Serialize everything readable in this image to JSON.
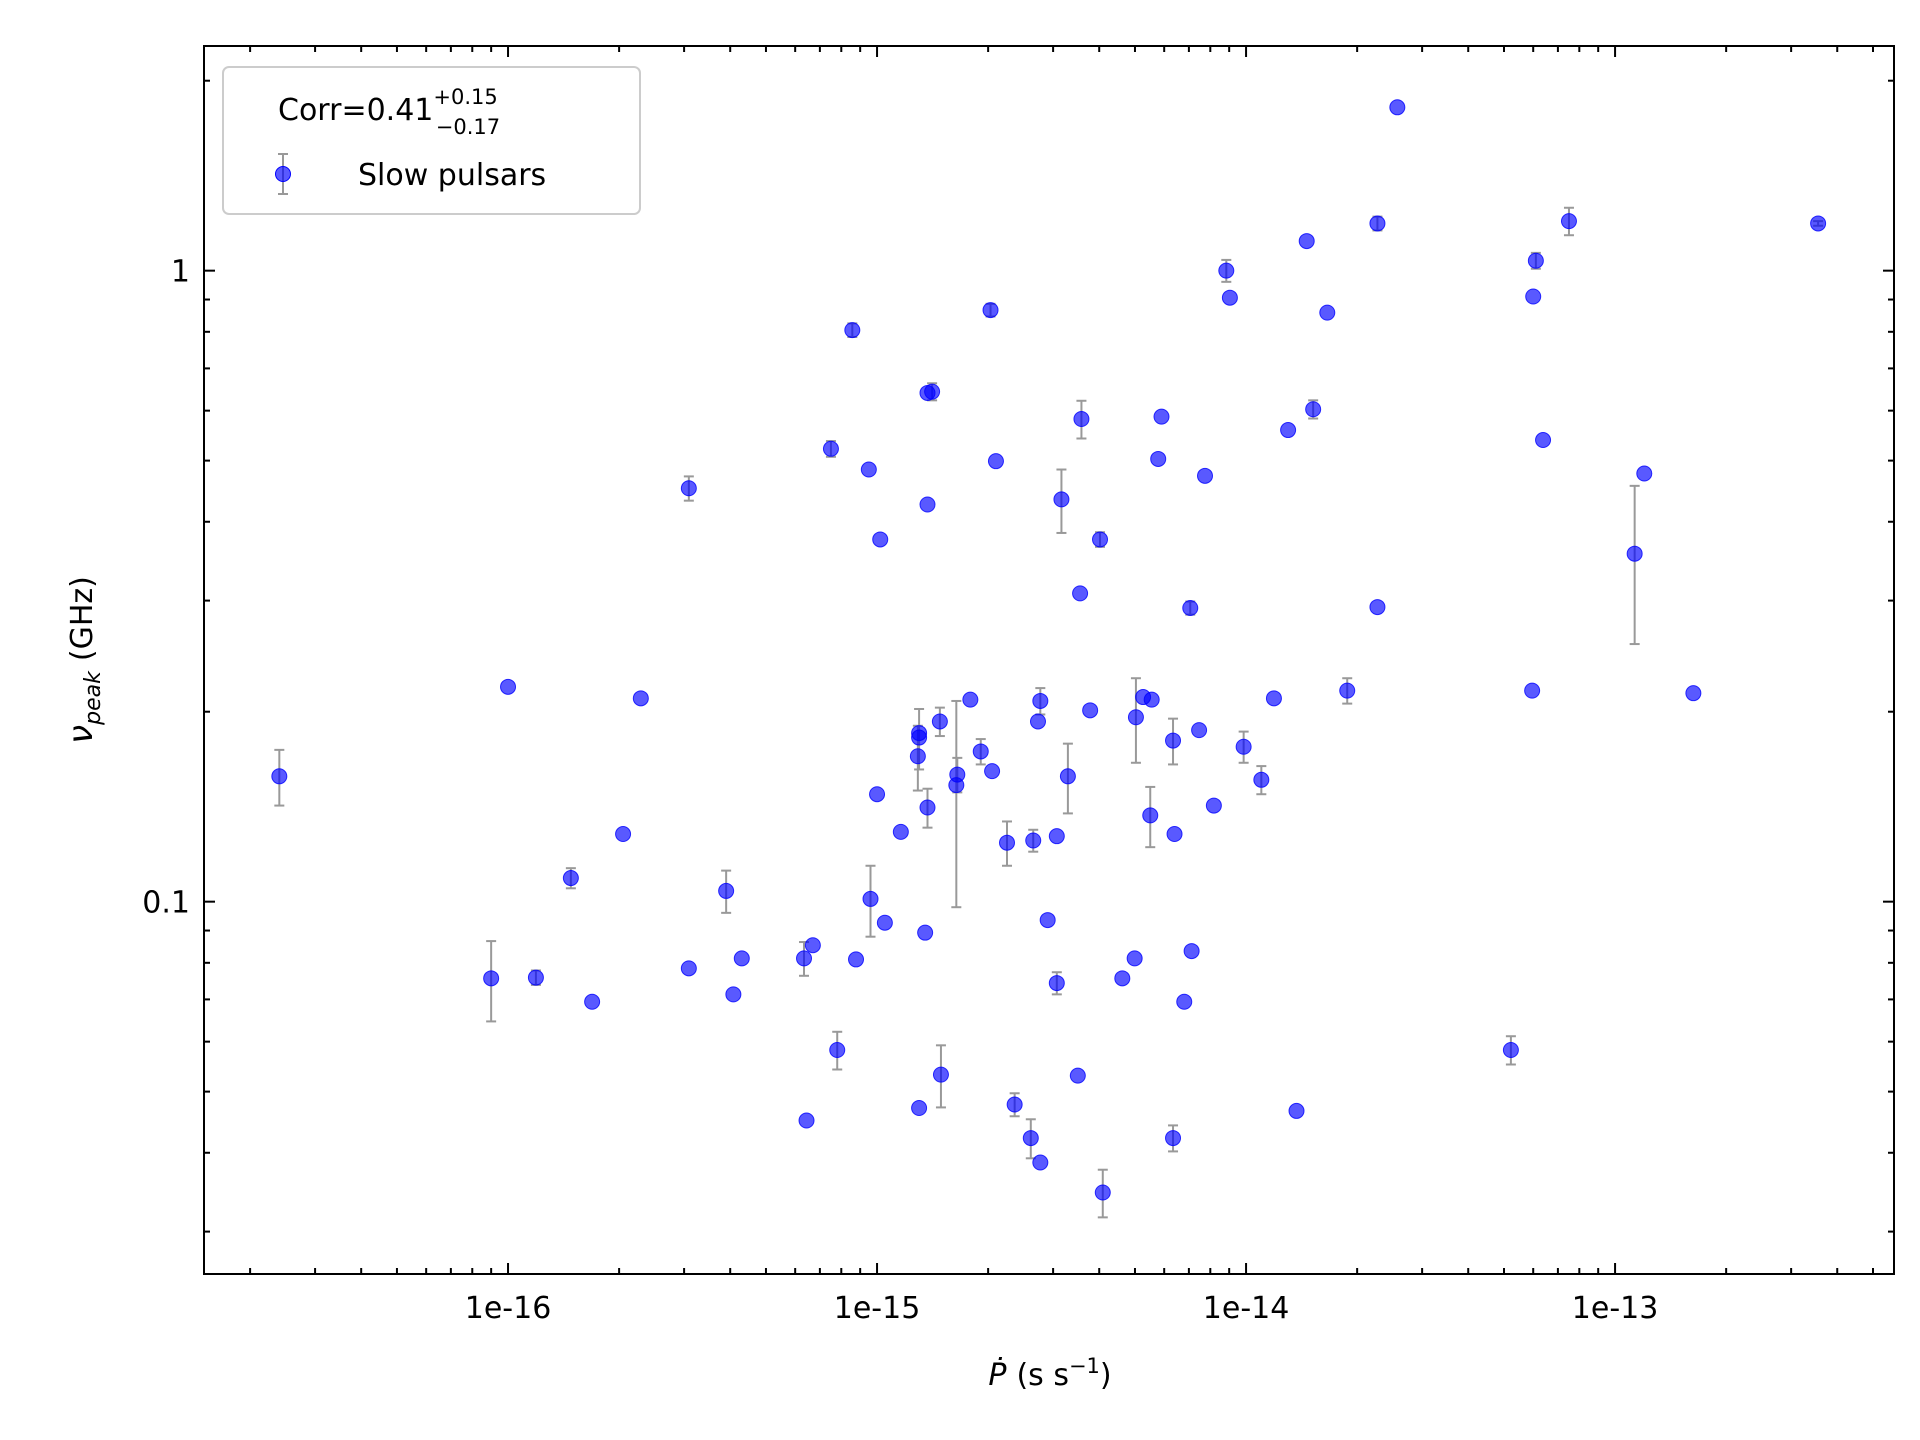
{
  "chart_data": {
    "type": "scatter",
    "log_x": true,
    "log_y": true,
    "legend_title": {
      "text": "Corr=0.41",
      "sup": "+0.15",
      "sub": "−0.17"
    },
    "xlabel": {
      "symbol": "Ṗ",
      "unit": "(s s",
      "sup": "−1",
      "close": ")"
    },
    "ylabel": {
      "symbol": "ν",
      "sub": "peak",
      "unit": "(GHz)"
    },
    "xlim": [
      1.5e-17,
      5.7e-13
    ],
    "ylim": [
      0.0257,
      2.27
    ],
    "xticks": [
      {
        "value": 1e-16,
        "label": "1e-16"
      },
      {
        "value": 1e-15,
        "label": "1e-15"
      },
      {
        "value": 1e-14,
        "label": "1e-14"
      },
      {
        "value": 1e-13,
        "label": "1e-13"
      }
    ],
    "yticks": [
      0.1,
      1
    ],
    "legend": "upper left",
    "x": [
      2.4e-17,
      9e-17,
      1e-16,
      1.19e-16,
      1.69e-16,
      1.48e-16,
      2.05e-16,
      2.29e-16,
      3.09e-16,
      3.09e-16,
      3.9e-16,
      4.08e-16,
      4.3e-16,
      6.34e-16,
      6.7e-16,
      6.44e-16,
      7.8e-16,
      7.5e-16,
      8.57e-16,
      8.77e-16,
      9.6e-16,
      9.5e-16,
      1e-15,
      1.02e-15,
      1.05e-15,
      1.16e-15,
      1.29e-15,
      1.3e-15,
      1.3e-15,
      1.3e-15,
      1.35e-15,
      1.37e-15,
      1.37e-15,
      1.41e-15,
      1.37e-15,
      1.48e-15,
      1.49e-15,
      1.65e-15,
      1.64e-15,
      1.79e-15,
      1.91e-15,
      2.05e-15,
      2.03e-15,
      2.1e-15,
      2.25e-15,
      2.36e-15,
      2.65e-15,
      2.61e-15,
      2.77e-15,
      2.73e-15,
      2.77e-15,
      2.9e-15,
      3.07e-15,
      3.07e-15,
      3.16e-15,
      3.29e-15,
      3.5e-15,
      3.55e-15,
      3.58e-15,
      3.78e-15,
      4.02e-15,
      4.09e-15,
      4.62e-15,
      4.99e-15,
      5.03e-15,
      5.26e-15,
      5.55e-15,
      5.5e-15,
      5.78e-15,
      5.9e-15,
      6.34e-15,
      6.4e-15,
      6.34e-15,
      6.8e-15,
      7.12e-15,
      7.06e-15,
      7.46e-15,
      7.74e-15,
      8.18e-15,
      8.84e-15,
      9.04e-15,
      9.85e-15,
      1.1e-14,
      1.19e-14,
      1.3e-14,
      1.37e-14,
      1.46e-14,
      1.52e-14,
      1.66e-14,
      1.88e-14,
      2.27e-14,
      2.27e-14,
      2.57e-14,
      5.22e-14,
      5.96e-14,
      6e-14,
      6.1e-14,
      6.38e-14,
      7.5e-14,
      1.13e-13,
      1.2e-13,
      1.63e-13,
      3.55e-13
    ],
    "series": [
      {
        "name": "Slow pulsars",
        "color": "#0000ff",
        "values": [
          0.158,
          0.0756,
          0.219,
          0.0758,
          0.0694,
          0.109,
          0.128,
          0.21,
          0.452,
          0.0784,
          0.104,
          0.0713,
          0.0813,
          0.0813,
          0.0853,
          0.045,
          0.0582,
          0.522,
          0.805,
          0.081,
          0.101,
          0.484,
          0.148,
          0.375,
          0.0926,
          0.129,
          0.17,
          0.182,
          0.185,
          0.0471,
          0.0893,
          0.426,
          0.64,
          0.643,
          0.141,
          0.193,
          0.0532,
          0.159,
          0.153,
          0.209,
          0.173,
          0.161,
          0.866,
          0.499,
          0.124,
          0.0477,
          0.125,
          0.0422,
          0.0386,
          0.193,
          0.208,
          0.0935,
          0.127,
          0.0743,
          0.434,
          0.158,
          0.053,
          0.308,
          0.582,
          0.201,
          0.375,
          0.0346,
          0.0756,
          0.0813,
          0.196,
          0.211,
          0.209,
          0.137,
          0.503,
          0.587,
          0.18,
          0.128,
          0.0422,
          0.0694,
          0.0835,
          0.292,
          0.187,
          0.473,
          0.142,
          1.0,
          0.906,
          0.176,
          0.156,
          0.21,
          0.559,
          0.0466,
          1.114,
          0.603,
          0.858,
          0.216,
          0.293,
          1.188,
          1.815,
          0.0582,
          0.216,
          0.91,
          1.037,
          0.539,
          1.198,
          0.356,
          0.477,
          0.214,
          1.188
        ],
        "yerr": [
          0.016,
          0.011,
          null,
          0.002,
          null,
          0.004,
          null,
          null,
          0.02,
          null,
          0.008,
          null,
          null,
          0.005,
          null,
          null,
          0.004,
          0.015,
          0.02,
          null,
          0.013,
          null,
          null,
          null,
          null,
          null,
          0.02,
          0.02,
          null,
          null,
          null,
          null,
          null,
          0.02,
          0.01,
          0.01,
          0.006,
          0.01,
          0.055,
          null,
          0.008,
          null,
          0.02,
          null,
          0.01,
          0.002,
          0.005,
          0.003,
          null,
          null,
          0.01,
          null,
          null,
          0.003,
          0.05,
          0.02,
          null,
          null,
          0.04,
          null,
          0.01,
          0.003,
          null,
          null,
          0.03,
          null,
          null,
          0.015,
          null,
          null,
          0.015,
          null,
          0.002,
          null,
          null,
          0.007,
          null,
          null,
          null,
          0.04,
          null,
          0.01,
          0.008,
          null,
          null,
          null,
          null,
          0.02,
          null,
          0.01,
          null,
          0.03,
          null,
          0.003,
          null,
          null,
          0.03,
          null,
          0.06,
          0.1,
          null,
          null,
          0.01
        ]
      }
    ]
  }
}
